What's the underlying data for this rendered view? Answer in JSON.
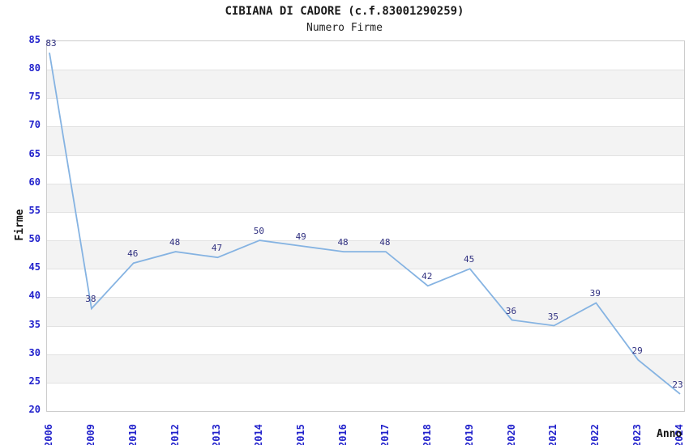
{
  "chart_data": {
    "type": "line",
    "title": "CIBIANA DI CADORE (c.f.83001290259)",
    "subtitle": "Numero Firme",
    "xlabel": "Anno",
    "ylabel": "Firme",
    "categories": [
      "2006",
      "2009",
      "2010",
      "2012",
      "2013",
      "2014",
      "2015",
      "2016",
      "2017",
      "2018",
      "2019",
      "2020",
      "2021",
      "2022",
      "2023",
      "2024"
    ],
    "series": [
      {
        "name": "Numero Firme",
        "values": [
          83,
          38,
          46,
          48,
          47,
          50,
          49,
          48,
          48,
          42,
          45,
          36,
          35,
          39,
          29,
          23
        ]
      }
    ],
    "ylim": [
      20,
      85
    ],
    "ytick_step": 5,
    "grid": "horizontal-bands",
    "legend": "none",
    "colors": {
      "line": "#85b3e2",
      "tick_label": "#2222cc",
      "data_label": "#303080",
      "band_gray": "#f3f3f3",
      "band_white": "#ffffff",
      "grid_line": "#e2e2e2",
      "plot_border": "#cccccc",
      "title_text": "#1a1a1a"
    }
  }
}
